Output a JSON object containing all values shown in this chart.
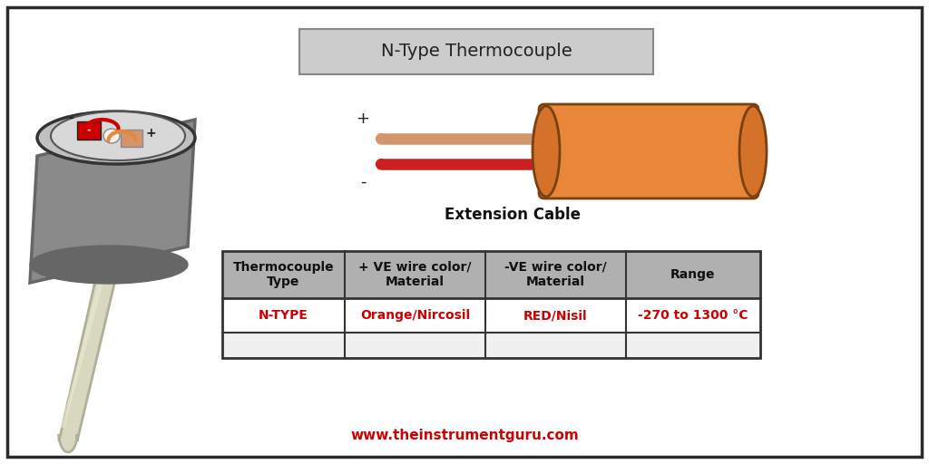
{
  "title": "N-Type Thermocouple",
  "bg_color": "#ffffff",
  "border_color": "#2a2a2a",
  "table_headers": [
    "Thermocouple\nType",
    "+ VE wire color/\nMaterial",
    "-VE wire color/\nMaterial",
    "Range"
  ],
  "table_data": [
    "N-TYPE",
    "Orange/Nircosil",
    "RED/Nisil",
    "-270 to 1300 °C"
  ],
  "table_header_bg": "#b0b0b0",
  "table_data_color": "#cc0000",
  "table_border_color": "#333333",
  "website": "www.theinstrumentguru.com",
  "website_color": "#cc0000",
  "cable_outer_color": "#e8873a",
  "cable_end_color": "#d4722a",
  "cable_highlight_color": "#f0a060",
  "wire_pos_color": "#d4956a",
  "wire_neg_color": "#cc2020",
  "sensor_body_color": "#8a8a8a",
  "sensor_body_dark": "#666666",
  "sensor_top_color": "#c0c0c0",
  "sensor_inner_color": "#d8d8d8",
  "sensor_stem_color": "#d8d8c0",
  "sensor_stem_dark": "#b0b098",
  "neg_terminal_color": "#cc0000",
  "pos_terminal_color": "#d4956a",
  "title_box_color": "#cccccc",
  "title_box_border": "#888888"
}
